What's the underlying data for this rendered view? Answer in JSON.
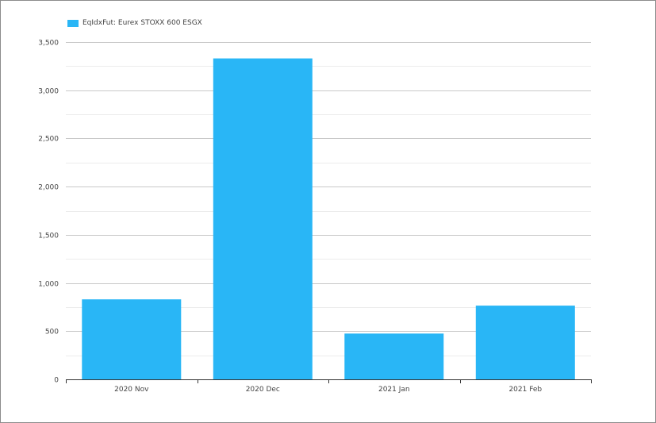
{
  "colors": {
    "bar": "#29b6f6",
    "grid_major": "#c8c8c8",
    "grid_minor": "#ececec",
    "axis": "#333333"
  },
  "legend": {
    "label": "EqIdxFut: Eurex STOXX 600 ESGX"
  },
  "chart_data": {
    "type": "bar",
    "title": "",
    "xlabel": "",
    "ylabel": "",
    "categories": [
      "2020 Nov",
      "2020 Dec",
      "2021 Jan",
      "2021 Feb"
    ],
    "series": [
      {
        "name": "EqIdxFut: Eurex STOXX 600 ESGX",
        "values": [
          830,
          3330,
          475,
          765
        ]
      }
    ],
    "ylim": [
      0,
      3500
    ],
    "yticks": [
      0,
      500,
      1000,
      1500,
      2000,
      2500,
      3000,
      3500
    ],
    "ytick_labels": [
      "0",
      "500",
      "1,000",
      "1,500",
      "2,000",
      "2,500",
      "3,000",
      "3,500"
    ],
    "grid": true,
    "legend_position": "top-left"
  }
}
